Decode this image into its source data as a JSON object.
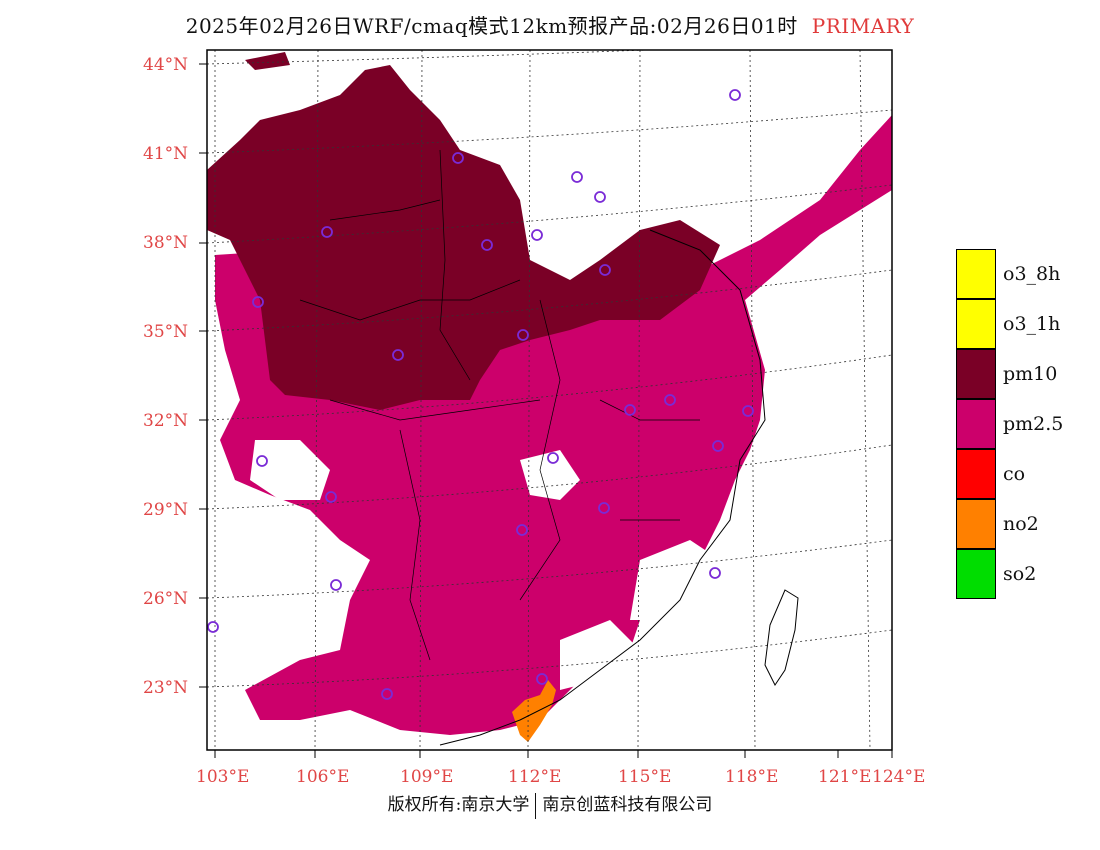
{
  "header": {
    "title": "2025年02月26日WRF/cmaq模式12km预报产品:02月26日01时",
    "tag": "PRIMARY"
  },
  "axes": {
    "lat_labels": [
      "44°N",
      "41°N",
      "38°N",
      "35°N",
      "32°N",
      "29°N",
      "26°N",
      "23°N"
    ],
    "lon_labels": [
      "103°E",
      "106°E",
      "109°E",
      "112°E",
      "115°E",
      "118°E",
      "121°E",
      "124°E"
    ]
  },
  "legend": [
    {
      "label": "o3_8h",
      "color": "#ffff00"
    },
    {
      "label": "o3_1h",
      "color": "#ffff00"
    },
    {
      "label": "pm10",
      "color": "#7a0026"
    },
    {
      "label": "pm2.5",
      "color": "#cc006b"
    },
    {
      "label": "co",
      "color": "#ff0000"
    },
    {
      "label": "no2",
      "color": "#ff8000"
    },
    {
      "label": "so2",
      "color": "#00dd00"
    }
  ],
  "footer": {
    "left": "版权所有:南京大学",
    "right": "南京创蓝科技有限公司"
  }
}
